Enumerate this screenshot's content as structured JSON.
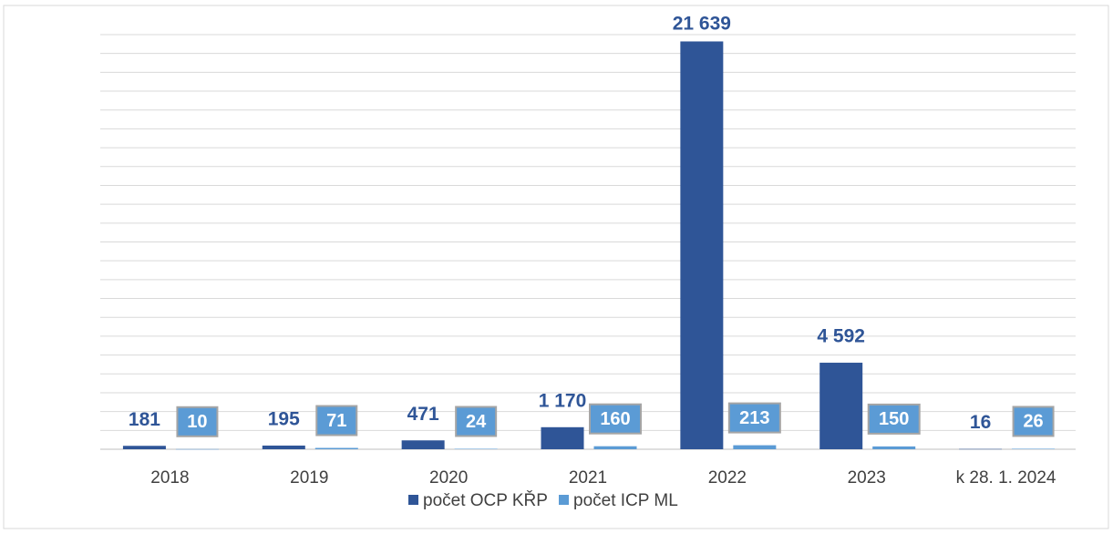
{
  "chart_data": {
    "type": "bar",
    "categories": [
      "2018",
      "2019",
      "2020",
      "2021",
      "2022",
      "2023",
      "k 28. 1. 2024"
    ],
    "series": [
      {
        "name": "počet OCP KŘP",
        "color": "#2f5597",
        "values": [
          181,
          195,
          471,
          1170,
          21639,
          4592,
          16
        ],
        "value_labels": [
          "181",
          "195",
          "471",
          "1 170",
          "21 639",
          "4 592",
          "16"
        ]
      },
      {
        "name": "počet ICP ML",
        "color": "#5b9bd5",
        "values": [
          10,
          71,
          24,
          160,
          213,
          150,
          26
        ],
        "value_labels": [
          "10",
          "71",
          "24",
          "160",
          "213",
          "150",
          "26"
        ]
      }
    ],
    "ylim": [
      0,
      22000
    ],
    "yticks": [
      0,
      1000,
      2000,
      3000,
      4000,
      5000,
      6000,
      7000,
      8000,
      9000,
      10000,
      11000,
      12000,
      13000,
      14000,
      15000,
      16000,
      17000,
      18000,
      19000,
      20000,
      21000,
      22000
    ],
    "grid": true,
    "legend": "bottom"
  }
}
